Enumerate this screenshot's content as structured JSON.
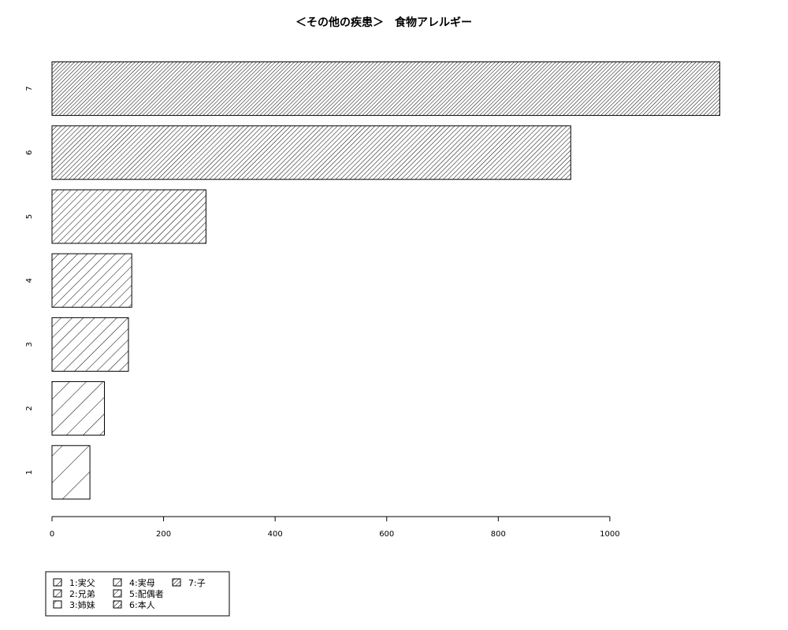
{
  "chart_data": {
    "type": "bar",
    "orientation": "horizontal",
    "title": "＜その他の疾患＞　食物アレルギー",
    "xlabel": "",
    "ylabel": "",
    "categories": [
      "1",
      "2",
      "3",
      "4",
      "5",
      "6",
      "7"
    ],
    "values": [
      68,
      94,
      137,
      143,
      276,
      930,
      1197
    ],
    "xlim": [
      0,
      1200
    ],
    "xticks": [
      "0",
      "200",
      "400",
      "600",
      "800",
      "1000"
    ],
    "grid": false,
    "legend_position": "bottom-left",
    "legend": [
      "1:実父",
      "2:兄弟",
      "3:姉妹",
      "4:実母",
      "5:配偶者",
      "6:本人",
      "7:子"
    ],
    "fill": "diagonal-hatch",
    "colors": {
      "bar_fill": "#ffffff",
      "stroke": "#000000"
    }
  }
}
